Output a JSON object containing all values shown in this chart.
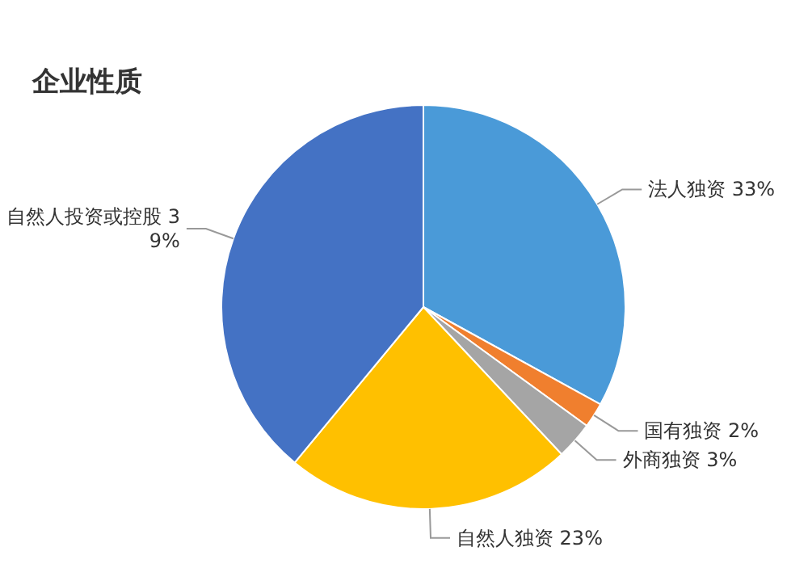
{
  "chart_data": {
    "type": "pie",
    "title": "企业性质",
    "categories": [
      "法人独资",
      "国有独资",
      "外商独资",
      "自然人独资",
      "自然人投资或控股"
    ],
    "values": [
      33,
      2,
      3,
      23,
      39
    ],
    "value_labels": [
      "33%",
      "2%",
      "3%",
      "23%",
      "39%"
    ],
    "colors": [
      "#4a9ad8",
      "#f07f2e",
      "#a5a5a5",
      "#ffc000",
      "#4472c4"
    ]
  }
}
